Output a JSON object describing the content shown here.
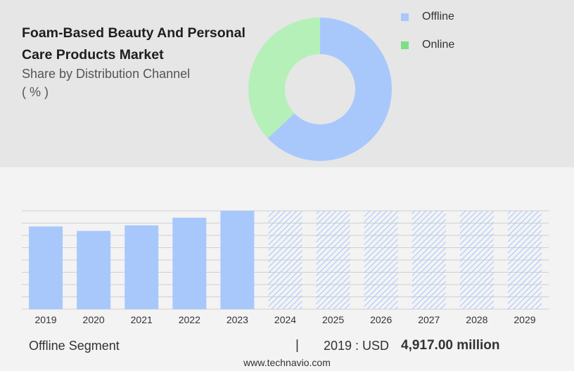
{
  "header": {
    "title": "Foam-Based Beauty And Personal Care Products Market",
    "subtitle_line1": "Share by Distribution Channel",
    "subtitle_line2": "( % )"
  },
  "colors": {
    "offline": "#a8c8fc",
    "online": "#b5f0b8",
    "offline_legend": "#a8c8fc",
    "online_legend": "#7ddf86",
    "forecast_hatch": "#a8c8fc",
    "grid": "#cfcfcf"
  },
  "chart_data": [
    {
      "type": "pie",
      "style": "donut",
      "title": "Share by Distribution Channel",
      "unit": "%",
      "slices": [
        {
          "name": "Offline",
          "value": 63
        },
        {
          "name": "Online",
          "value": 37
        }
      ],
      "legend_position": "top-right"
    },
    {
      "type": "bar",
      "categories": [
        "2019",
        "2020",
        "2021",
        "2022",
        "2023",
        "2024",
        "2025",
        "2026",
        "2027",
        "2028",
        "2029"
      ],
      "values": [
        4917,
        4654,
        4985,
        5440,
        5850,
        null,
        null,
        null,
        null,
        null,
        null
      ],
      "forecast_categories": [
        "2024",
        "2025",
        "2026",
        "2027",
        "2028",
        "2029"
      ],
      "series_name": "Offline",
      "ylim": [
        0,
        5850
      ],
      "grid": true
    }
  ],
  "footer": {
    "segment": "Offline Segment",
    "separator": "|",
    "year_label": "2019 : USD",
    "value_label": "4,917.00 million",
    "source": "www.technavio.com"
  }
}
